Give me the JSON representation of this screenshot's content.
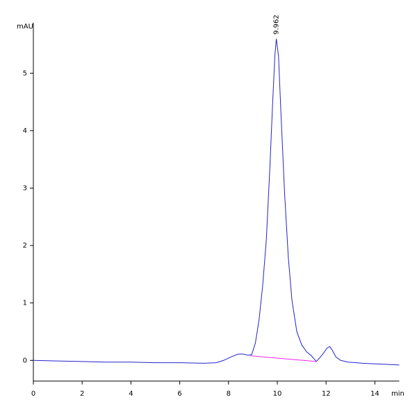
{
  "chart_data": {
    "type": "line",
    "y_label": "mAU",
    "x_label": "min",
    "annotations": [
      {
        "text": "9.962",
        "x": 9.962
      }
    ],
    "xlim": [
      0,
      15
    ],
    "ylim": [
      -0.36,
      5.88
    ],
    "xticks": [
      0,
      2,
      4,
      6,
      8,
      10,
      12,
      14
    ],
    "yticks": [
      0,
      1,
      2,
      3,
      4,
      5
    ],
    "series": [
      {
        "color": "#2222cc",
        "x": [
          0,
          1,
          2,
          3,
          4,
          5,
          6,
          7,
          7.5,
          7.8,
          8.1,
          8.4,
          8.6,
          8.8,
          8.95,
          9.1,
          9.25,
          9.4,
          9.55,
          9.7,
          9.8,
          9.9,
          9.96,
          10.05,
          10.15,
          10.3,
          10.45,
          10.6,
          10.8,
          11.0,
          11.2,
          11.4,
          11.6,
          11.75,
          11.9,
          12.05,
          12.15,
          12.25,
          12.4,
          12.6,
          12.9,
          13.5,
          14,
          14.5,
          15
        ],
        "values": [
          0,
          -0.01,
          -0.02,
          -0.03,
          -0.03,
          -0.04,
          -0.04,
          -0.05,
          -0.04,
          0,
          0.06,
          0.11,
          0.11,
          0.09,
          0.1,
          0.3,
          0.7,
          1.3,
          2.1,
          3.4,
          4.4,
          5.3,
          5.6,
          5.3,
          4.3,
          2.9,
          1.8,
          1.05,
          0.5,
          0.27,
          0.15,
          0.08,
          -0.02,
          0.05,
          0.13,
          0.22,
          0.24,
          0.18,
          0.06,
          0,
          -0.03,
          -0.05,
          -0.06,
          -0.07,
          -0.08
        ]
      },
      {
        "color": "#ee22ee",
        "x": [
          8.9,
          11.6
        ],
        "values": [
          0.08,
          -0.02
        ]
      }
    ]
  }
}
